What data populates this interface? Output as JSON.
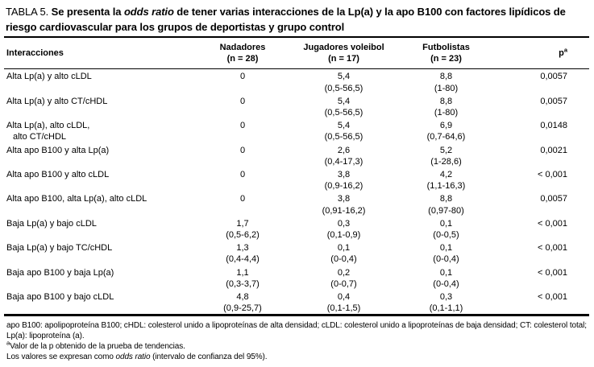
{
  "title": {
    "label": "TABLA 5. ",
    "text_1": "Se presenta la ",
    "text_italic": "odds ratio",
    "text_2": " de tener varias interacciones de la Lp(a) y la apo B100 con factores lipídicos de riesgo cardiovascular para los grupos de deportistas y grupo control"
  },
  "table": {
    "columns": {
      "interactions": "Interacciones",
      "groups": [
        {
          "name": "Nadadores",
          "n": "(n = 28)"
        },
        {
          "name": "Jugadores voleibol",
          "n": "(n = 17)"
        },
        {
          "name": "Futbolistas",
          "n": "(n = 23)"
        }
      ],
      "p": {
        "label": "p",
        "sup": "a"
      }
    },
    "rows": [
      {
        "label": [
          "Alta Lp(a) y alto cLDL"
        ],
        "cells": [
          [
            "0",
            ""
          ],
          [
            "5,4",
            "(0,5-56,5)"
          ],
          [
            "8,8",
            "(1-80)"
          ]
        ],
        "p": "0,0057"
      },
      {
        "label": [
          "Alta Lp(a) y alto CT/cHDL"
        ],
        "cells": [
          [
            "0",
            ""
          ],
          [
            "5,4",
            "(0,5-56,5)"
          ],
          [
            "8,8",
            "(1-80)"
          ]
        ],
        "p": "0,0057"
      },
      {
        "label": [
          "Alta Lp(a), alto cLDL,",
          "alto CT/cHDL"
        ],
        "cells": [
          [
            "0",
            ""
          ],
          [
            "5,4",
            "(0,5-56,5)"
          ],
          [
            "6,9",
            "(0,7-64,6)"
          ]
        ],
        "p": "0,0148"
      },
      {
        "label": [
          "Alta apo B100 y alta Lp(a)"
        ],
        "cells": [
          [
            "0",
            ""
          ],
          [
            "2,6",
            "(0,4-17,3)"
          ],
          [
            "5,2",
            "(1-28,6)"
          ]
        ],
        "p": "0,0021"
      },
      {
        "label": [
          "Alta apo B100 y alto cLDL"
        ],
        "cells": [
          [
            "0",
            ""
          ],
          [
            "3,8",
            "(0,9-16,2)"
          ],
          [
            "4,2",
            "(1,1-16,3)"
          ]
        ],
        "p": "< 0,001"
      },
      {
        "label": [
          "Alta apo B100, alta Lp(a), alto cLDL"
        ],
        "cells": [
          [
            "0",
            ""
          ],
          [
            "3,8",
            "(0,91-16,2)"
          ],
          [
            "8,8",
            "(0,97-80)"
          ]
        ],
        "p": "0,0057"
      },
      {
        "label": [
          "Baja Lp(a) y bajo cLDL"
        ],
        "cells": [
          [
            "1,7",
            "(0,5-6,2)"
          ],
          [
            "0,3",
            "(0,1-0,9)"
          ],
          [
            "0,1",
            "(0-0,5)"
          ]
        ],
        "p": "< 0,001"
      },
      {
        "label": [
          "Baja Lp(a) y bajo TC/cHDL"
        ],
        "cells": [
          [
            "1,3",
            "(0,4-4,4)"
          ],
          [
            "0,1",
            "(0-0,4)"
          ],
          [
            "0,1",
            "(0-0,4)"
          ]
        ],
        "p": "< 0,001"
      },
      {
        "label": [
          "Baja apo B100 y baja Lp(a)"
        ],
        "cells": [
          [
            "1,1",
            "(0,3-3,7)"
          ],
          [
            "0,2",
            "(0-0,7)"
          ],
          [
            "0,1",
            "(0-0,4)"
          ]
        ],
        "p": "< 0,001"
      },
      {
        "label": [
          "Baja apo B100 y bajo cLDL"
        ],
        "cells": [
          [
            "4,8",
            "(0,9-25,7)"
          ],
          [
            "0,4",
            "(0,1-1,5)"
          ],
          [
            "0,3",
            "(0,1-1,1)"
          ]
        ],
        "p": "< 0,001"
      }
    ]
  },
  "footnotes": {
    "abbreviations": "apo B100: apolipoproteína B100; cHDL: colesterol unido a lipoproteínas de alta densidad; cLDL: colesterol unido a lipoproteínas de baja densidad; CT: colesterol total; Lp(a): lipoproteína (a).",
    "trend_sup": "a",
    "trend": "Valor de la p obtenido de la prueba de tendencias.",
    "values_pre": "Los valores se expresan como ",
    "values_italic": "odds ratio",
    "values_post": " (intervalo de confianza del 95%)."
  }
}
